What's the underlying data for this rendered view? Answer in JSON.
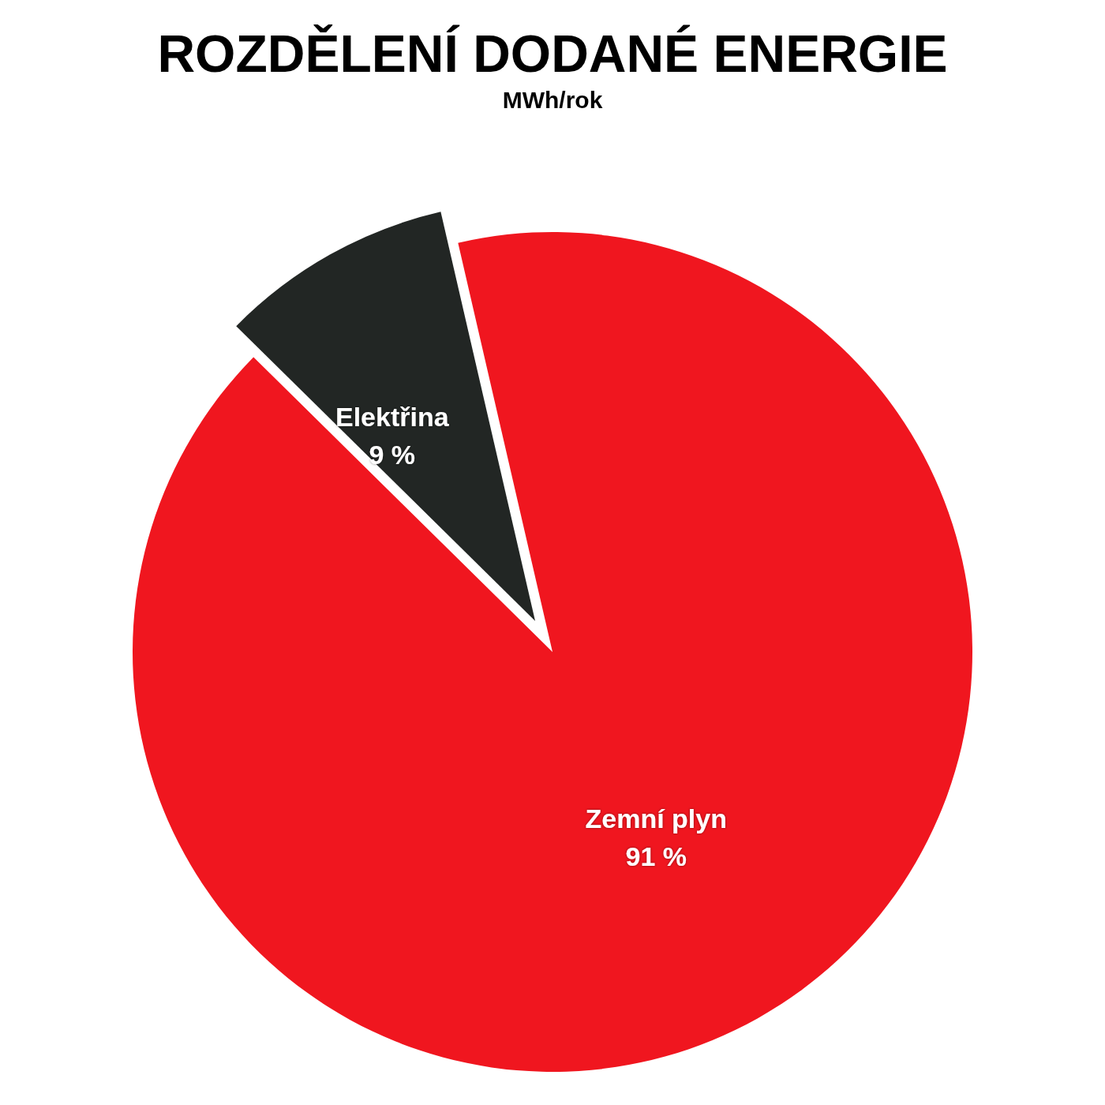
{
  "chart_data": {
    "type": "pie",
    "title": "ROZDĚLENÍ DODANÉ ENERGIE",
    "subtitle": "MWh/rok",
    "categories": [
      "Zemní plyn",
      "Elektřina"
    ],
    "values": [
      91,
      9
    ],
    "value_labels": [
      "91 %",
      "9 %"
    ],
    "colors": [
      "#f0161f",
      "#222624"
    ]
  }
}
